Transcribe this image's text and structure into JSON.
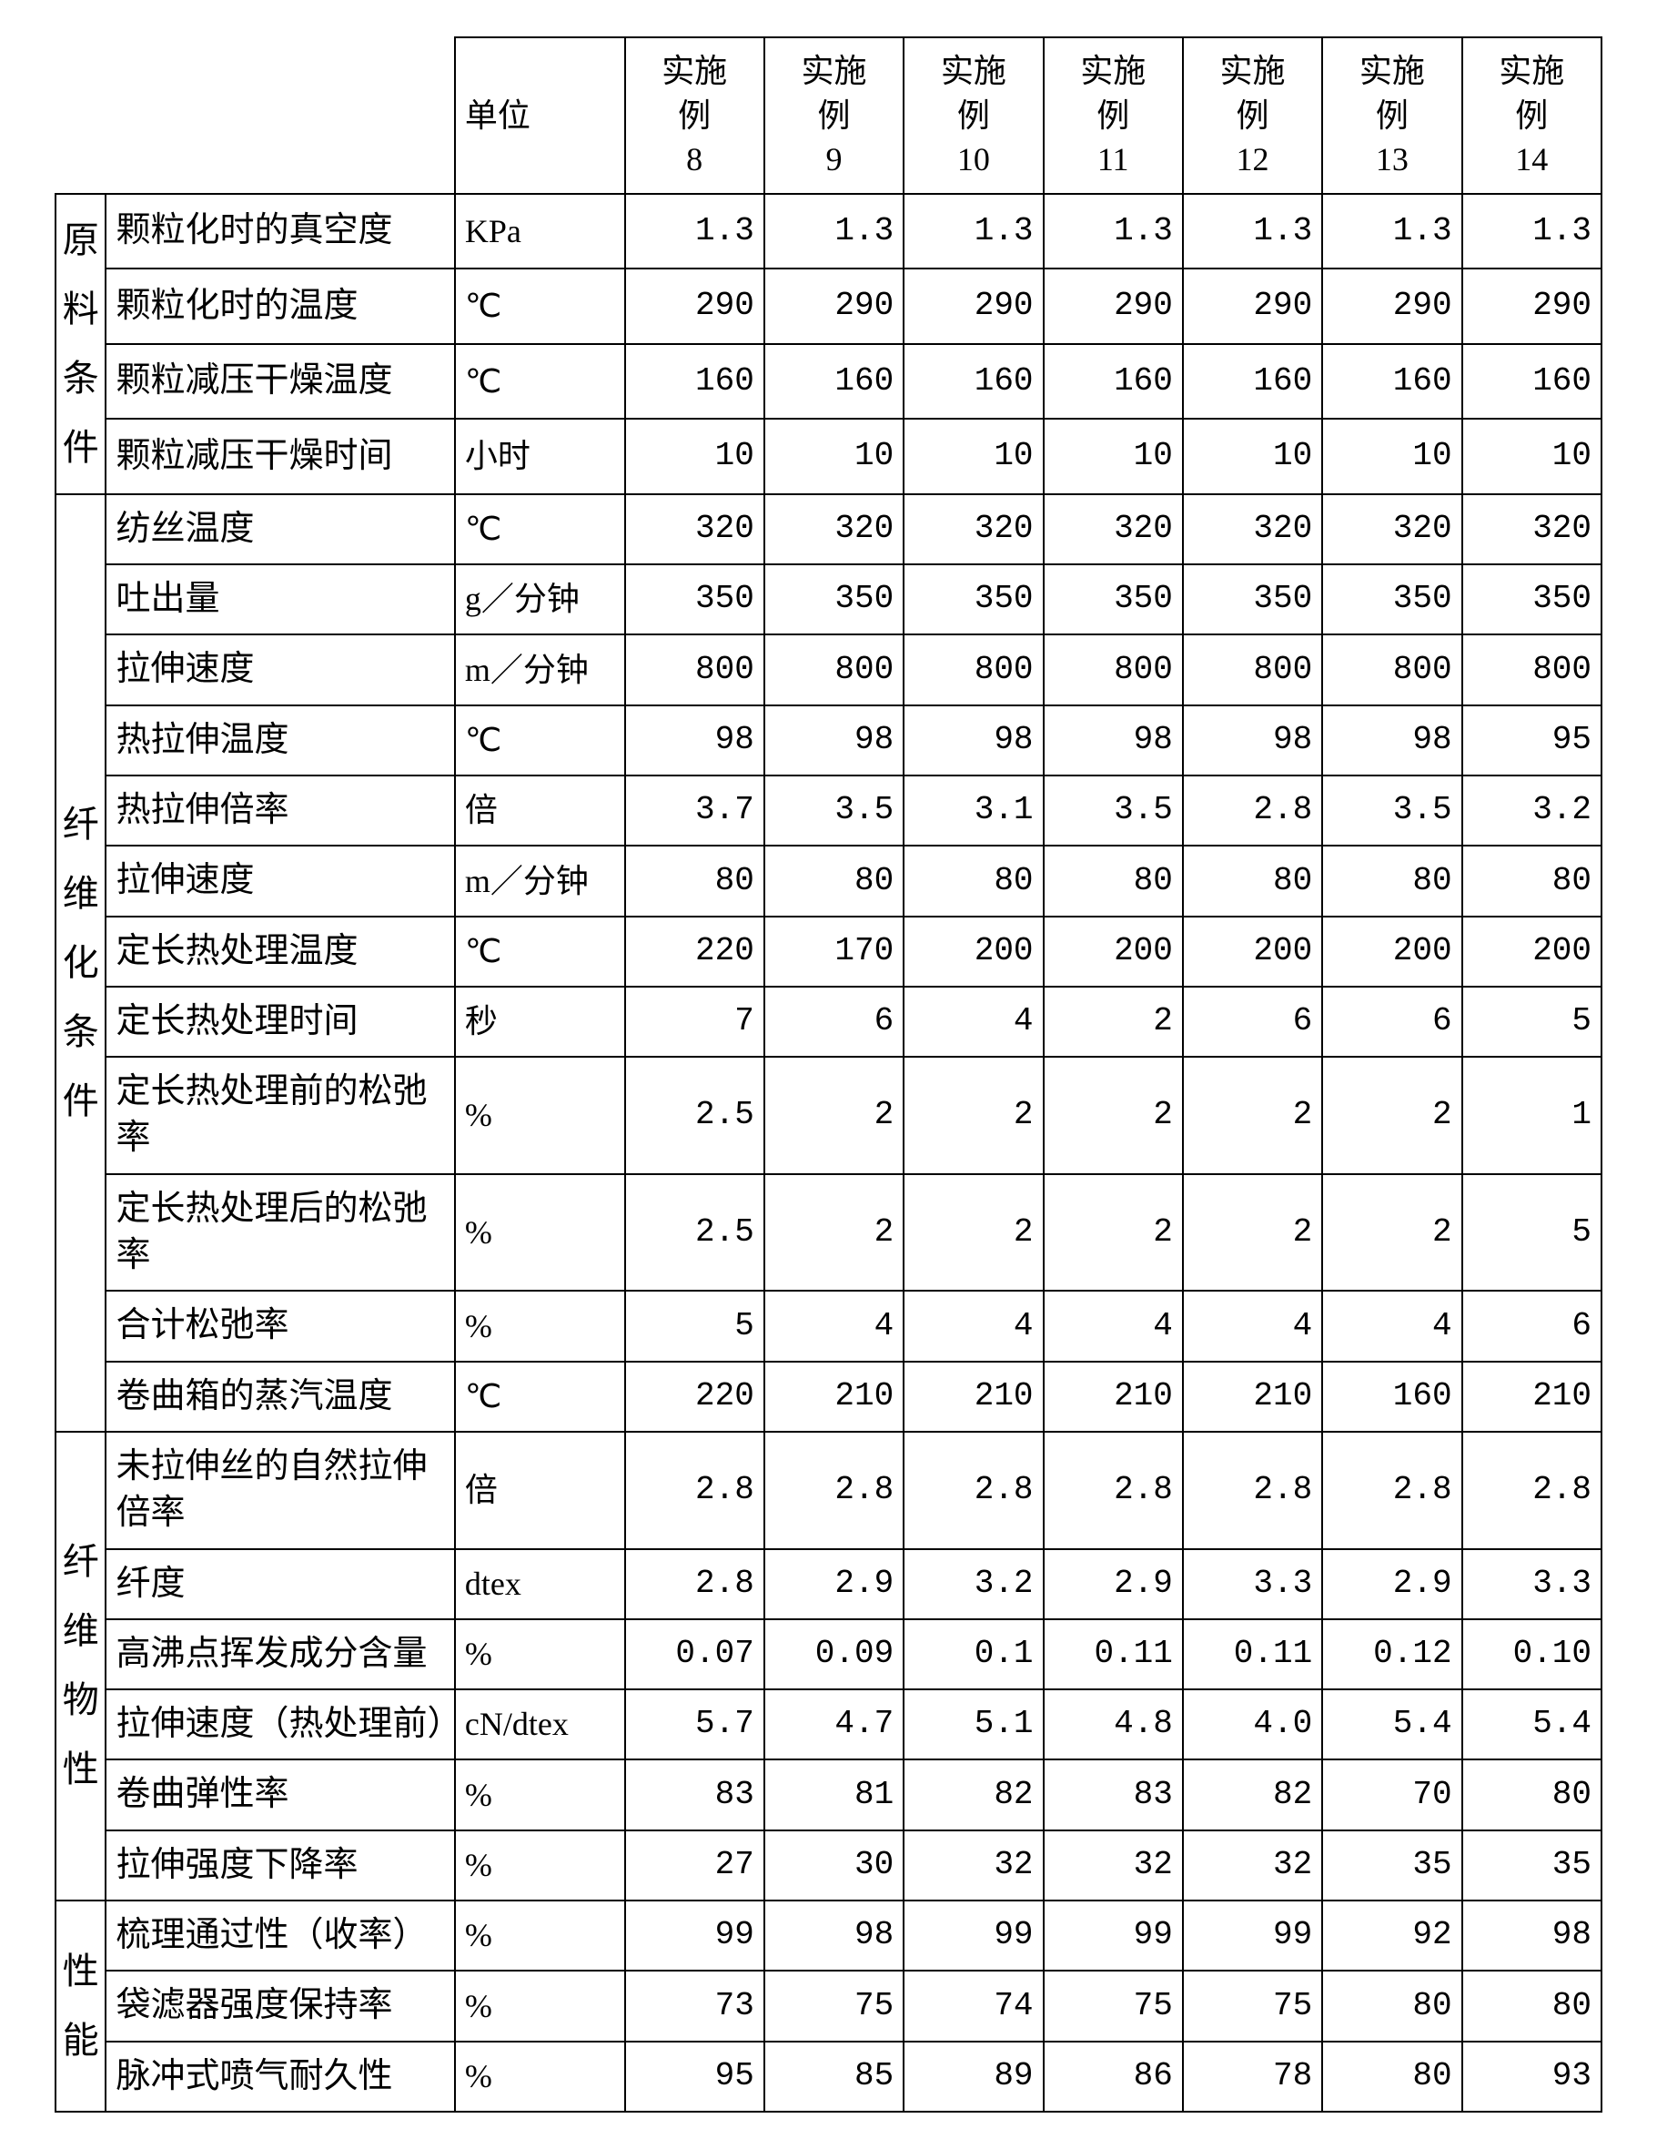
{
  "header": {
    "unit_label": "单位",
    "columns": [
      "实施\n例\n8",
      "实施\n例\n9",
      "实施\n例\n10",
      "实施\n例\n11",
      "实施\n例\n12",
      "实施\n例\n13",
      "实施\n例\n14"
    ]
  },
  "sections": [
    {
      "label": "原\n料\n条\n件",
      "rows": [
        {
          "param": "颗粒化时的真空度",
          "unit": "KPa",
          "values": [
            "1.3",
            "1.3",
            "1.3",
            "1.3",
            "1.3",
            "1.3",
            "1.3"
          ]
        },
        {
          "param": "颗粒化时的温度",
          "unit": "℃",
          "values": [
            "290",
            "290",
            "290",
            "290",
            "290",
            "290",
            "290"
          ]
        },
        {
          "param": "颗粒减压干燥温度",
          "unit": "℃",
          "values": [
            "160",
            "160",
            "160",
            "160",
            "160",
            "160",
            "160"
          ]
        },
        {
          "param": "颗粒减压干燥时间",
          "unit": "小时",
          "values": [
            "10",
            "10",
            "10",
            "10",
            "10",
            "10",
            "10"
          ]
        }
      ]
    },
    {
      "label": "纤\n维\n化\n条\n件",
      "rows": [
        {
          "param": "纺丝温度",
          "unit": "℃",
          "values": [
            "320",
            "320",
            "320",
            "320",
            "320",
            "320",
            "320"
          ]
        },
        {
          "param": "吐出量",
          "unit": "g／分钟",
          "values": [
            "350",
            "350",
            "350",
            "350",
            "350",
            "350",
            "350"
          ]
        },
        {
          "param": "拉伸速度",
          "unit": "m／分钟",
          "values": [
            "800",
            "800",
            "800",
            "800",
            "800",
            "800",
            "800"
          ]
        },
        {
          "param": "热拉伸温度",
          "unit": "℃",
          "values": [
            "98",
            "98",
            "98",
            "98",
            "98",
            "98",
            "95"
          ]
        },
        {
          "param": "热拉伸倍率",
          "unit": "倍",
          "values": [
            "3.7",
            "3.5",
            "3.1",
            "3.5",
            "2.8",
            "3.5",
            "3.2"
          ]
        },
        {
          "param": "拉伸速度",
          "unit": "m／分钟",
          "values": [
            "80",
            "80",
            "80",
            "80",
            "80",
            "80",
            "80"
          ]
        },
        {
          "param": "定长热处理温度",
          "unit": "℃",
          "values": [
            "220",
            "170",
            "200",
            "200",
            "200",
            "200",
            "200"
          ]
        },
        {
          "param": "定长热处理时间",
          "unit": "秒",
          "values": [
            "7",
            "6",
            "4",
            "2",
            "6",
            "6",
            "5"
          ]
        },
        {
          "param": "定长热处理前的松弛率",
          "unit": "%",
          "values": [
            "2.5",
            "2",
            "2",
            "2",
            "2",
            "2",
            "1"
          ]
        },
        {
          "param": "定长热处理后的松弛率",
          "unit": "%",
          "values": [
            "2.5",
            "2",
            "2",
            "2",
            "2",
            "2",
            "5"
          ]
        },
        {
          "param": "合计松弛率",
          "unit": "%",
          "values": [
            "5",
            "4",
            "4",
            "4",
            "4",
            "4",
            "6"
          ]
        },
        {
          "param": "卷曲箱的蒸汽温度",
          "unit": "℃",
          "values": [
            "220",
            "210",
            "210",
            "210",
            "210",
            "160",
            "210"
          ]
        }
      ]
    },
    {
      "label": "纤\n维\n物\n性",
      "rows": [
        {
          "param": "未拉伸丝的自然拉伸倍率",
          "unit": "倍",
          "values": [
            "2.8",
            "2.8",
            "2.8",
            "2.8",
            "2.8",
            "2.8",
            "2.8"
          ]
        },
        {
          "param": "纤度",
          "unit": "dtex",
          "values": [
            "2.8",
            "2.9",
            "3.2",
            "2.9",
            "3.3",
            "2.9",
            "3.3"
          ]
        },
        {
          "param": "高沸点挥发成分含量",
          "unit": "%",
          "values": [
            "0.07",
            "0.09",
            "0.1",
            "0.11",
            "0.11",
            "0.12",
            "0.10"
          ]
        },
        {
          "param": "拉伸速度（热处理前）",
          "unit": "cN/dtex",
          "values": [
            "5.7",
            "4.7",
            "5.1",
            "4.8",
            "4.0",
            "5.4",
            "5.4"
          ]
        },
        {
          "param": "卷曲弹性率",
          "unit": "%",
          "values": [
            "83",
            "81",
            "82",
            "83",
            "82",
            "70",
            "80"
          ]
        },
        {
          "param": "拉伸强度下降率",
          "unit": "%",
          "values": [
            "27",
            "30",
            "32",
            "32",
            "32",
            "35",
            "35"
          ]
        }
      ]
    },
    {
      "label": "性\n能",
      "rows": [
        {
          "param": "梳理通过性（收率）",
          "unit": "%",
          "values": [
            "99",
            "98",
            "99",
            "99",
            "99",
            "92",
            "98"
          ]
        },
        {
          "param": "袋滤器强度保持率",
          "unit": "%",
          "values": [
            "73",
            "75",
            "74",
            "75",
            "75",
            "80",
            "80"
          ]
        },
        {
          "param": "脉冲式喷气耐久性",
          "unit": "%",
          "values": [
            "95",
            "85",
            "89",
            "86",
            "78",
            "80",
            "93"
          ]
        }
      ]
    }
  ]
}
